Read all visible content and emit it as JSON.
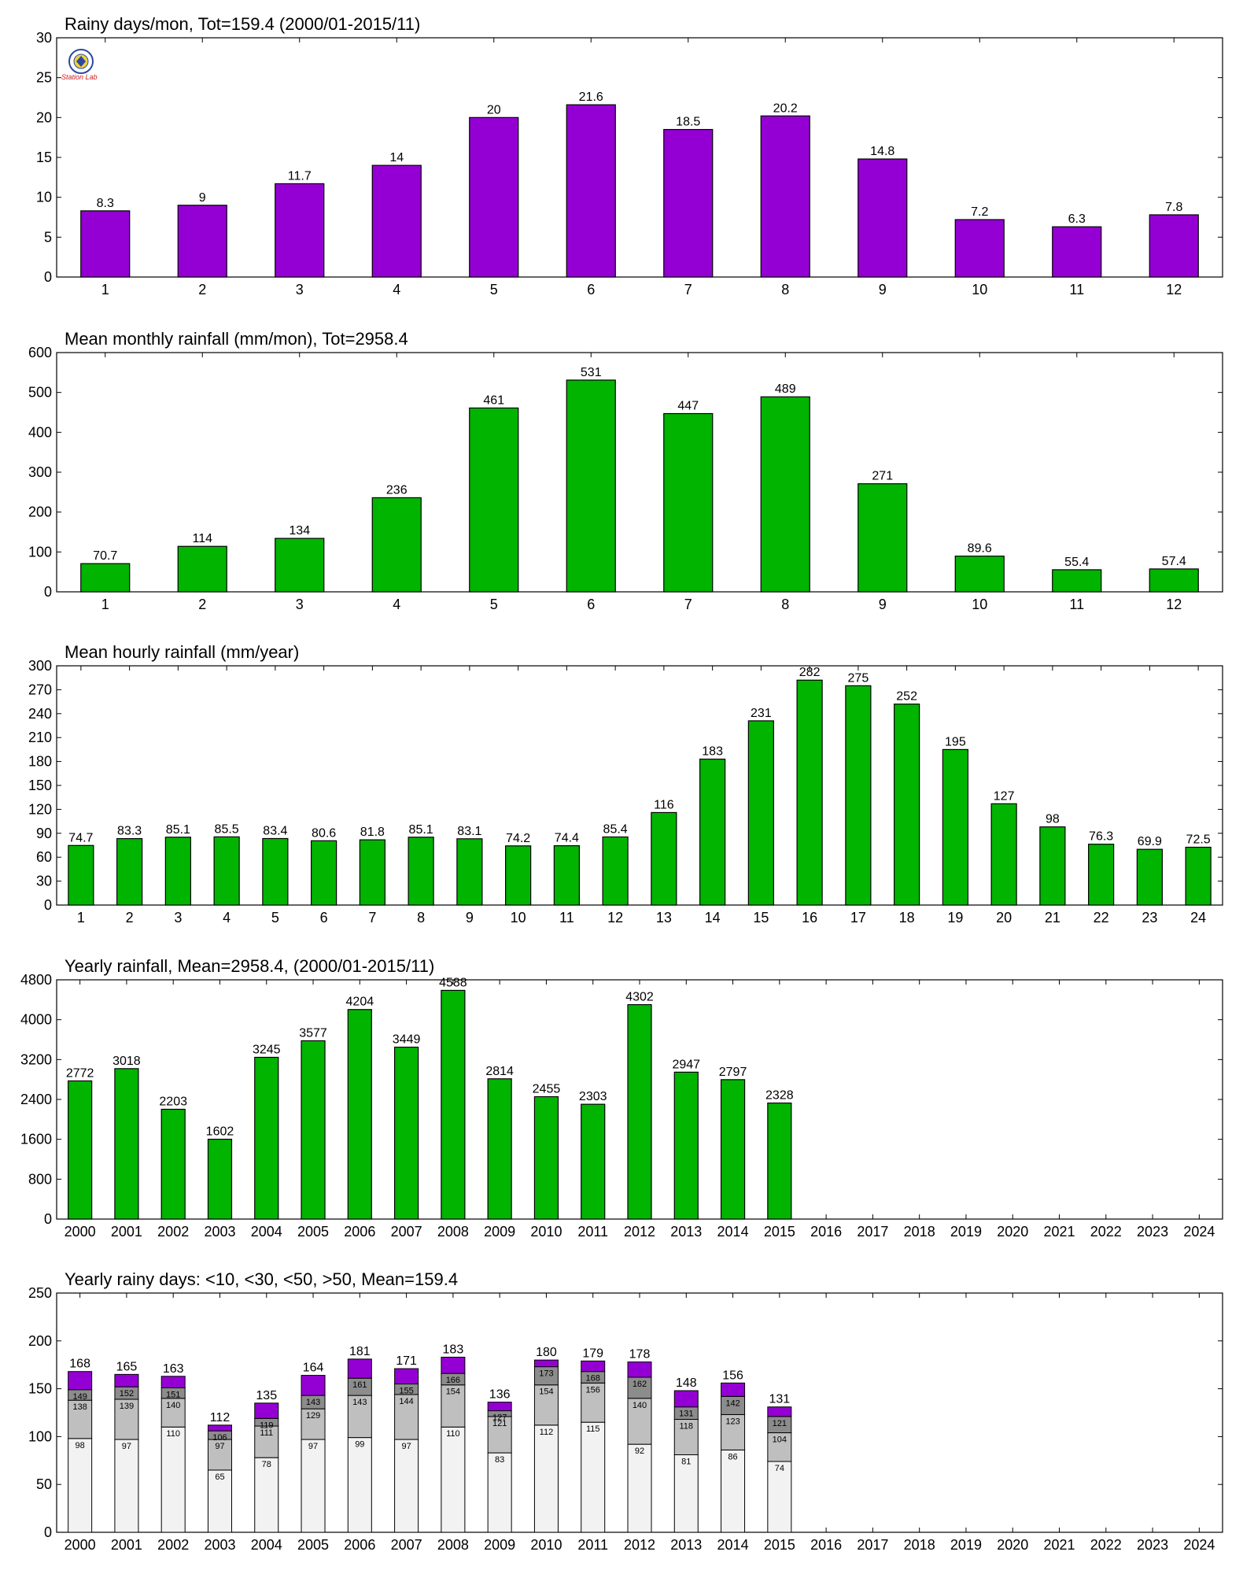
{
  "colors": {
    "purple": "#9400D3",
    "green": "#00B400",
    "stack_lt10": "#F2F2F2",
    "stack_lt30": "#BFBFBF",
    "stack_lt50": "#8C8C8C",
    "stack_gt50": "#9400D3"
  },
  "logo": {
    "icon": "lab-seal-icon",
    "text": "Station Lab"
  },
  "chart_data": [
    {
      "type": "bar",
      "title": "Rainy days/mon, Tot=159.4 (2000/01-2015/11)",
      "categories": [
        "1",
        "2",
        "3",
        "4",
        "5",
        "6",
        "7",
        "8",
        "9",
        "10",
        "11",
        "12"
      ],
      "values": [
        8.3,
        9,
        11.7,
        14,
        20,
        21.6,
        18.5,
        20.2,
        14.8,
        7.2,
        6.3,
        7.8
      ],
      "labels": [
        "8.3",
        "9",
        "11.7",
        "14",
        "20",
        "21.6",
        "18.5",
        "20.2",
        "14.8",
        "7.2",
        "6.3",
        "7.8"
      ],
      "yticks": [
        "0",
        "5",
        "10",
        "15",
        "20",
        "25",
        "30"
      ],
      "ylim": [
        0,
        30
      ],
      "color": "#9400D3"
    },
    {
      "type": "bar",
      "title": "Mean monthly rainfall (mm/mon), Tot=2958.4",
      "categories": [
        "1",
        "2",
        "3",
        "4",
        "5",
        "6",
        "7",
        "8",
        "9",
        "10",
        "11",
        "12"
      ],
      "values": [
        70.7,
        114,
        134,
        236,
        461,
        531,
        447,
        489,
        271,
        89.6,
        55.4,
        57.4
      ],
      "labels": [
        "70.7",
        "114",
        "134",
        "236",
        "461",
        "531",
        "447",
        "489",
        "271",
        "89.6",
        "55.4",
        "57.4"
      ],
      "yticks": [
        "0",
        "100",
        "200",
        "300",
        "400",
        "500",
        "600"
      ],
      "ylim": [
        0,
        600
      ],
      "color": "#00B400"
    },
    {
      "type": "bar",
      "title": "Mean hourly rainfall (mm/year)",
      "categories": [
        "1",
        "2",
        "3",
        "4",
        "5",
        "6",
        "7",
        "8",
        "9",
        "10",
        "11",
        "12",
        "13",
        "14",
        "15",
        "16",
        "17",
        "18",
        "19",
        "20",
        "21",
        "22",
        "23",
        "24"
      ],
      "values": [
        74.7,
        83.3,
        85.1,
        85.5,
        83.4,
        80.6,
        81.8,
        85.1,
        83.1,
        74.2,
        74.4,
        85.4,
        116,
        183,
        231,
        282,
        275,
        252,
        195,
        127,
        98,
        76.3,
        69.9,
        72.5
      ],
      "labels": [
        "74.7",
        "83.3",
        "85.1",
        "85.5",
        "83.4",
        "80.6",
        "81.8",
        "85.1",
        "83.1",
        "74.2",
        "74.4",
        "85.4",
        "116",
        "183",
        "231",
        "282",
        "275",
        "252",
        "195",
        "127",
        "98",
        "76.3",
        "69.9",
        "72.5"
      ],
      "yticks": [
        "0",
        "30",
        "60",
        "90",
        "120",
        "150",
        "180",
        "210",
        "240",
        "270",
        "300"
      ],
      "ylim": [
        0,
        300
      ],
      "color": "#00B400"
    },
    {
      "type": "bar",
      "title": "Yearly rainfall, Mean=2958.4, (2000/01-2015/11)",
      "categories": [
        "2000",
        "2001",
        "2002",
        "2003",
        "2004",
        "2005",
        "2006",
        "2007",
        "2008",
        "2009",
        "2010",
        "2011",
        "2012",
        "2013",
        "2014",
        "2015",
        "2016",
        "2017",
        "2018",
        "2019",
        "2020",
        "2021",
        "2022",
        "2023",
        "2024"
      ],
      "values": [
        2772,
        3018,
        2203,
        1602,
        3245,
        3577,
        4204,
        3449,
        4588,
        2814,
        2455,
        2303,
        4302,
        2947,
        2797,
        2328
      ],
      "labels": [
        "2772",
        "3018",
        "2203",
        "1602",
        "3245",
        "3577",
        "4204",
        "3449",
        "4588",
        "2814",
        "2455",
        "2303",
        "4302",
        "2947",
        "2797",
        "2328"
      ],
      "yticks": [
        "0",
        "800",
        "1600",
        "2400",
        "3200",
        "4000",
        "4800"
      ],
      "ylim": [
        0,
        4800
      ],
      "color": "#00B400"
    },
    {
      "type": "stacked-bar",
      "title": "Yearly rainy days: <10, <30, <50, >50, Mean=159.4",
      "categories": [
        "2000",
        "2001",
        "2002",
        "2003",
        "2004",
        "2005",
        "2006",
        "2007",
        "2008",
        "2009",
        "2010",
        "2011",
        "2012",
        "2013",
        "2014",
        "2015",
        "2016",
        "2017",
        "2018",
        "2019",
        "2020",
        "2021",
        "2022",
        "2023",
        "2024"
      ],
      "cumulative": [
        [
          98,
          138,
          149,
          168
        ],
        [
          97,
          139,
          152,
          165
        ],
        [
          110,
          140,
          151,
          163
        ],
        [
          65,
          97,
          106,
          112
        ],
        [
          78,
          111,
          119,
          135
        ],
        [
          97,
          129,
          143,
          164
        ],
        [
          99,
          143,
          161,
          181
        ],
        [
          97,
          144,
          155,
          171
        ],
        [
          110,
          154,
          166,
          183
        ],
        [
          83,
          121,
          127,
          136
        ],
        [
          112,
          154,
          173,
          180
        ],
        [
          115,
          156,
          168,
          179
        ],
        [
          92,
          140,
          162,
          178
        ],
        [
          81,
          118,
          131,
          148
        ],
        [
          86,
          123,
          142,
          156
        ],
        [
          74,
          104,
          121,
          131
        ]
      ],
      "seg_labels": [
        [
          "98",
          "138",
          "149"
        ],
        [
          "97",
          "139",
          "152"
        ],
        [
          "110",
          "140",
          "151"
        ],
        [
          "65",
          "97",
          "106"
        ],
        [
          "78",
          "111",
          "119"
        ],
        [
          "97",
          "129",
          "143"
        ],
        [
          "99",
          "143",
          "161"
        ],
        [
          "97",
          "144",
          "155"
        ],
        [
          "110",
          "154",
          "166"
        ],
        [
          "83",
          "121",
          "127"
        ],
        [
          "112",
          "154",
          "173"
        ],
        [
          "115",
          "156",
          "168"
        ],
        [
          "92",
          "140",
          "162"
        ],
        [
          "81",
          "118",
          "131"
        ],
        [
          "86",
          "123",
          "142"
        ],
        [
          "74",
          "104",
          "121"
        ]
      ],
      "total_labels": [
        "168",
        "165",
        "163",
        "112",
        "135",
        "164",
        "181",
        "171",
        "183",
        "136",
        "180",
        "179",
        "178",
        "148",
        "156",
        "131"
      ],
      "yticks": [
        "0",
        "50",
        "100",
        "150",
        "200",
        "250"
      ],
      "ylim": [
        0,
        250
      ],
      "colors": [
        "#F2F2F2",
        "#BFBFBF",
        "#8C8C8C",
        "#9400D3"
      ]
    }
  ]
}
